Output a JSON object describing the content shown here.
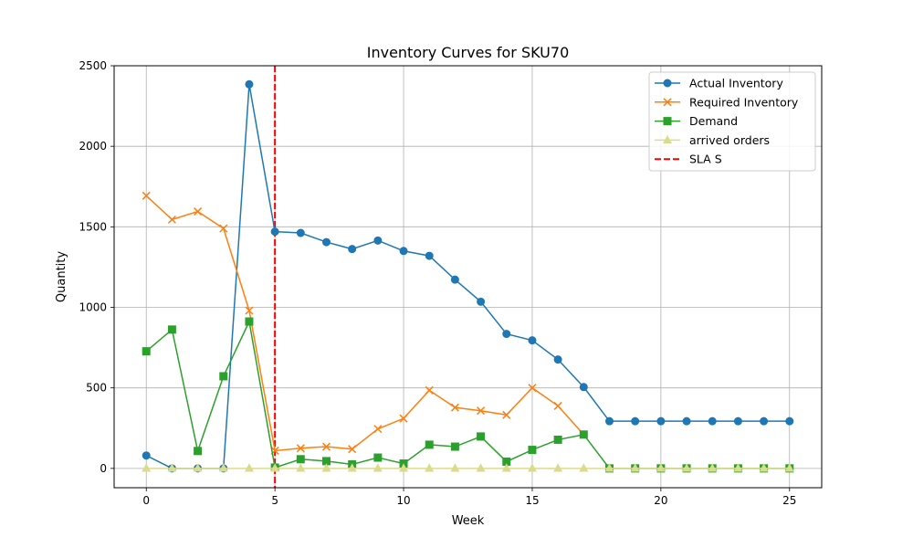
{
  "chart_data": {
    "type": "line",
    "title": "Inventory Curves for SKU70",
    "xlabel": "Week",
    "ylabel": "Quantity",
    "xlim": [
      -1.25,
      26.25
    ],
    "ylim": [
      -120,
      2500
    ],
    "xticks": [
      0,
      5,
      10,
      15,
      20,
      25
    ],
    "yticks": [
      0,
      500,
      1000,
      1500,
      2000,
      2500
    ],
    "grid": true,
    "legend_position": "top-right",
    "x": [
      0,
      1,
      2,
      3,
      4,
      5,
      6,
      7,
      8,
      9,
      10,
      11,
      12,
      13,
      14,
      15,
      16,
      17,
      18,
      19,
      20,
      21,
      22,
      23,
      24,
      25
    ],
    "series": [
      {
        "name": "Actual Inventory",
        "color": "#1f77b4",
        "marker": "circle",
        "values": [
          80,
          0,
          0,
          0,
          2385,
          1470,
          1462,
          1405,
          1362,
          1415,
          1350,
          1320,
          1172,
          1035,
          835,
          795,
          676,
          505,
          293,
          293,
          293,
          293,
          293,
          293,
          293,
          293
        ]
      },
      {
        "name": "Required Inventory",
        "color": "#ff7f0e",
        "marker": "x",
        "values": [
          1693,
          1545,
          1595,
          1490,
          980,
          110,
          125,
          135,
          120,
          245,
          310,
          485,
          378,
          358,
          332,
          500,
          388,
          210,
          null,
          null,
          null,
          null,
          null,
          null,
          null,
          null
        ]
      },
      {
        "name": "Demand",
        "color": "#2ca02c",
        "marker": "square",
        "values": [
          727,
          862,
          108,
          572,
          912,
          5,
          57,
          45,
          25,
          67,
          30,
          147,
          135,
          198,
          42,
          115,
          178,
          210,
          0,
          0,
          0,
          0,
          0,
          0,
          0,
          0
        ]
      },
      {
        "name": "arrived orders",
        "color": "#dbdb8d",
        "marker": "triangle",
        "values": [
          0,
          0,
          0,
          0,
          0,
          0,
          0,
          0,
          0,
          0,
          0,
          0,
          0,
          0,
          0,
          0,
          0,
          0,
          0,
          0,
          0,
          0,
          0,
          0,
          0,
          0
        ]
      }
    ],
    "vlines": [
      {
        "name": "SLA S",
        "x": 5,
        "color": "#ff0000",
        "style": "dashed"
      }
    ]
  }
}
